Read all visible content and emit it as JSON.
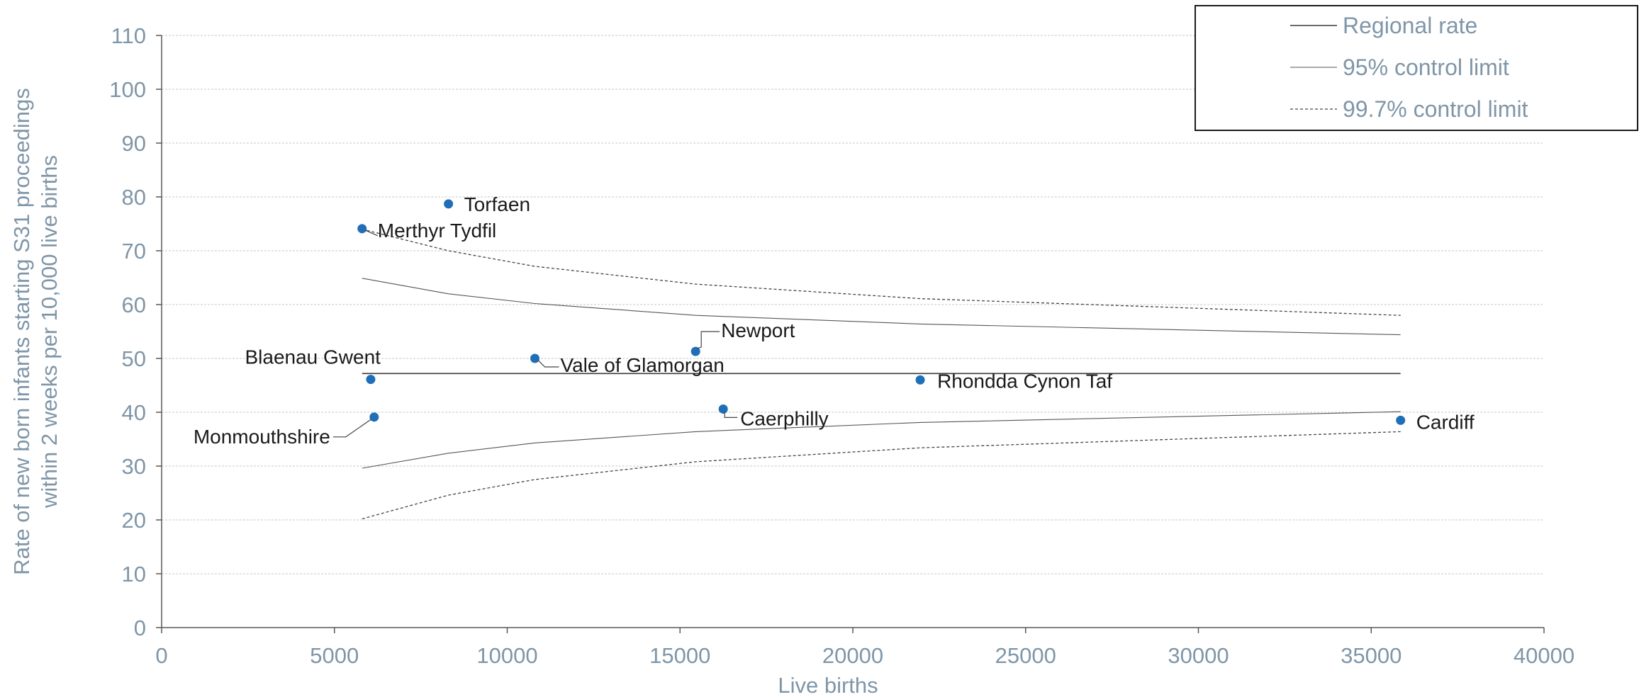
{
  "chart_data": {
    "type": "scatter",
    "title": "",
    "xlabel": "Live births",
    "ylabel_lines": [
      "Rate of new born infants starting S31 proceedings",
      "within 2 weeks per 10,000 live births"
    ],
    "xlim": [
      0,
      40000
    ],
    "ylim": [
      0,
      110
    ],
    "x_ticks": [
      0,
      5000,
      10000,
      15000,
      20000,
      25000,
      30000,
      35000,
      40000
    ],
    "y_ticks": [
      0,
      10,
      20,
      30,
      40,
      50,
      60,
      70,
      80,
      90,
      100,
      110
    ],
    "grid": true,
    "legend_position": "top-right",
    "point_color": "#1f6fb8",
    "points": [
      {
        "label": "Torfaen",
        "x": 8300,
        "y": 78.7
      },
      {
        "label": "Merthyr Tydfil",
        "x": 5800,
        "y": 74.1
      },
      {
        "label": "Newport",
        "x": 15450,
        "y": 51.3
      },
      {
        "label": "Blaenau Gwent",
        "x": 6050,
        "y": 46.1
      },
      {
        "label": "Vale of Glamorgan",
        "x": 10800,
        "y": 50.0
      },
      {
        "label": "Rhondda Cynon Taf",
        "x": 21950,
        "y": 46.0
      },
      {
        "label": "Caerphilly",
        "x": 16250,
        "y": 40.6
      },
      {
        "label": "Monmouthshire",
        "x": 6150,
        "y": 39.1
      },
      {
        "label": "Cardiff",
        "x": 35850,
        "y": 38.5
      }
    ],
    "lines": [
      {
        "name": "Regional rate",
        "style": "solid",
        "x": [
          5800,
          35850
        ],
        "y": [
          47.2,
          47.2
        ]
      },
      {
        "name": "95% control limit",
        "style": "thin",
        "x": [
          5800,
          8300,
          10800,
          15450,
          21950,
          35850
        ],
        "y": [
          64.9,
          62.0,
          60.2,
          58.0,
          56.4,
          54.4
        ]
      },
      {
        "name": "",
        "style": "thin",
        "x": [
          5800,
          8300,
          10800,
          15450,
          21950,
          35850
        ],
        "y": [
          29.6,
          32.4,
          34.3,
          36.4,
          38.1,
          40.1
        ]
      },
      {
        "name": "99.7% control limit",
        "style": "dashed",
        "x": [
          5800,
          8300,
          10800,
          15450,
          21950,
          35850
        ],
        "y": [
          74.0,
          70.0,
          67.1,
          63.8,
          61.1,
          58.0
        ]
      },
      {
        "name": "",
        "style": "dashed",
        "x": [
          5800,
          8300,
          10800,
          15450,
          21950,
          35850
        ],
        "y": [
          20.2,
          24.6,
          27.5,
          30.8,
          33.4,
          36.4
        ]
      }
    ],
    "legend": [
      {
        "name": "Regional rate",
        "style": "solid"
      },
      {
        "name": "95% control limit",
        "style": "thin"
      },
      {
        "name": "99.7% control limit",
        "style": "dashed"
      }
    ]
  }
}
